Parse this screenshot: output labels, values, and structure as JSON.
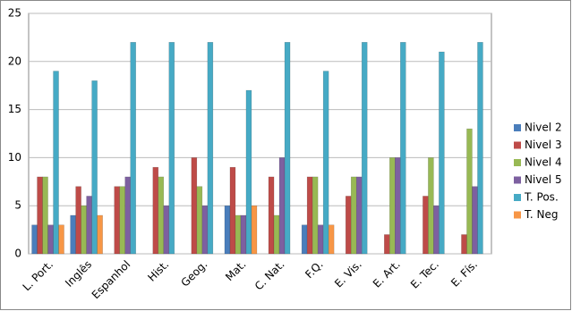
{
  "chart_data": {
    "type": "bar",
    "categories": [
      "L. Port.",
      "Inglês",
      "Espanhol",
      "Hist.",
      "Geog.",
      "Mat.",
      "C. Nat.",
      "F.Q.",
      "E. Vis.",
      "E. Art.",
      "E. Tec.",
      "E. Fís."
    ],
    "series": [
      {
        "name": "Nivel 2",
        "color": "#4a7ebb",
        "values": [
          3,
          4,
          0,
          0,
          0,
          5,
          0,
          3,
          0,
          0,
          0,
          0
        ]
      },
      {
        "name": "Nivel 3",
        "color": "#be4b48",
        "values": [
          8,
          7,
          7,
          9,
          10,
          9,
          8,
          8,
          6,
          2,
          6,
          2
        ]
      },
      {
        "name": "Nivel 4",
        "color": "#98b954",
        "values": [
          8,
          5,
          7,
          8,
          7,
          4,
          4,
          8,
          8,
          10,
          10,
          13
        ]
      },
      {
        "name": "Nivel 5",
        "color": "#7d60a0",
        "values": [
          3,
          6,
          8,
          5,
          5,
          4,
          10,
          3,
          8,
          10,
          5,
          7
        ]
      },
      {
        "name": "T. Pos.",
        "color": "#46aac5",
        "values": [
          19,
          18,
          22,
          22,
          22,
          17,
          22,
          19,
          22,
          22,
          21,
          22
        ]
      },
      {
        "name": "T. Neg",
        "color": "#f79646",
        "values": [
          3,
          4,
          0,
          0,
          0,
          5,
          0,
          3,
          0,
          0,
          0,
          0
        ]
      }
    ],
    "ylim": [
      0,
      25
    ],
    "yticks": [
      0,
      5,
      10,
      15,
      20,
      25
    ],
    "grid": true,
    "legend": "right"
  }
}
